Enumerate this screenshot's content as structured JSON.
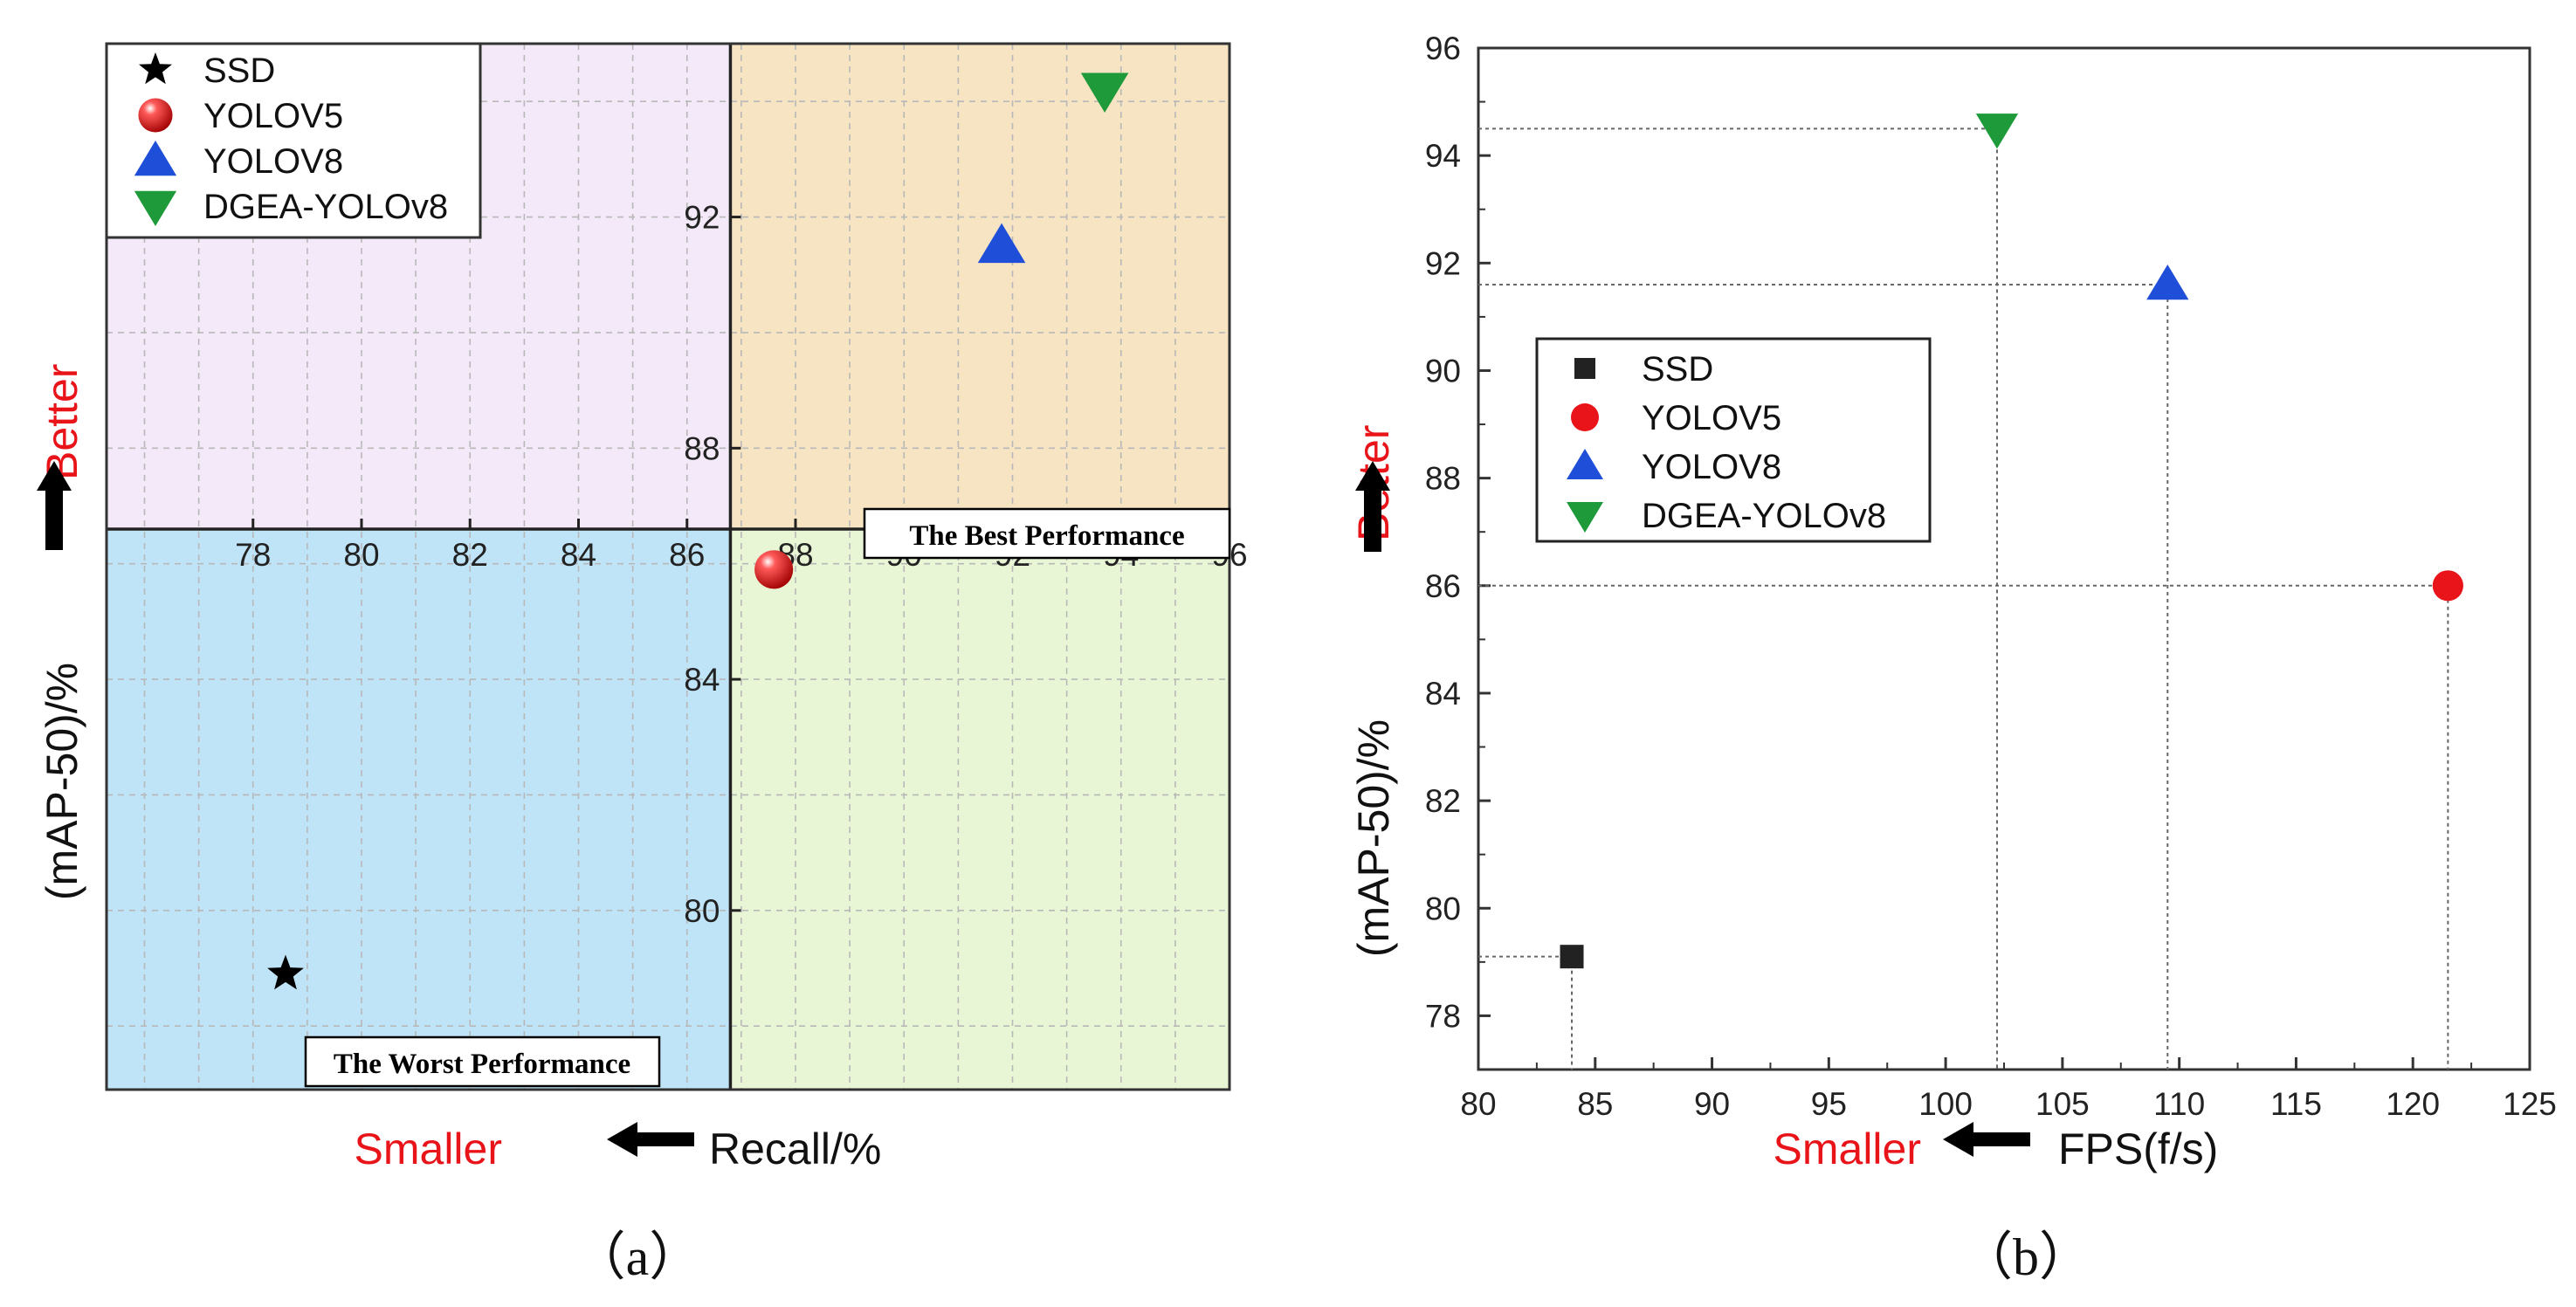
{
  "chart_data": [
    {
      "type": "scatter",
      "panel_label": "（a）",
      "xlabel": "Recall/%",
      "ylabel": "(mAP-50)/%",
      "xlabel_hint": "Smaller",
      "ylabel_hint": "Better",
      "xlim": [
        75.3,
        96
      ],
      "ylim": [
        76.9,
        95
      ],
      "x_ticks": [
        78,
        80,
        82,
        84,
        86,
        88,
        90,
        92,
        94,
        96
      ],
      "y_ticks": [
        80,
        84,
        88,
        92
      ],
      "grid": true,
      "legend_position": "top-left",
      "crosshair": {
        "x": 86.8,
        "y": 86.6
      },
      "quadrant_colors": {
        "top_left": "#f3e9f8",
        "top_right": "#f6e4c3",
        "bottom_left": "#bfe3f7",
        "bottom_right": "#e9f6d6"
      },
      "annotations": [
        "The Best Performance",
        "The Worst Performance"
      ],
      "series": [
        {
          "name": "SSD",
          "marker": "star",
          "color": "#000000",
          "x": [
            78.6
          ],
          "y": [
            78.9
          ]
        },
        {
          "name": "YOLOV5",
          "marker": "sphere",
          "color": "#e8141a",
          "x": [
            87.6
          ],
          "y": [
            85.9
          ]
        },
        {
          "name": "YOLOV8",
          "marker": "triangle-up",
          "color": "#1f4fd8",
          "x": [
            91.8
          ],
          "y": [
            91.5
          ]
        },
        {
          "name": "DGEA-YOLOv8",
          "marker": "triangle-down",
          "color": "#1e9a3a",
          "x": [
            93.7
          ],
          "y": [
            94.2
          ]
        }
      ]
    },
    {
      "type": "scatter",
      "panel_label": "（b）",
      "xlabel": "FPS(f/s)",
      "ylabel": "(mAP-50)/%",
      "xlabel_hint": "Smaller",
      "ylabel_hint": "Better",
      "xlim": [
        80,
        125
      ],
      "ylim": [
        77,
        96
      ],
      "x_ticks": [
        80,
        85,
        90,
        95,
        100,
        105,
        110,
        115,
        120,
        125
      ],
      "y_ticks": [
        78,
        80,
        82,
        84,
        86,
        88,
        90,
        92,
        94,
        96
      ],
      "grid": false,
      "drop_lines": true,
      "legend_position": "center-left",
      "series": [
        {
          "name": "SSD",
          "marker": "square",
          "color": "#222222",
          "x": [
            84
          ],
          "y": [
            79.1
          ]
        },
        {
          "name": "YOLOV5",
          "marker": "circle",
          "color": "#e8141a",
          "x": [
            121.5
          ],
          "y": [
            86
          ]
        },
        {
          "name": "YOLOV8",
          "marker": "triangle-up",
          "color": "#1f4fd8",
          "x": [
            109.5
          ],
          "y": [
            91.6
          ]
        },
        {
          "name": "DGEA-YOLOv8",
          "marker": "triangle-down",
          "color": "#1e9a3a",
          "x": [
            102.2
          ],
          "y": [
            94.5
          ]
        }
      ]
    }
  ]
}
